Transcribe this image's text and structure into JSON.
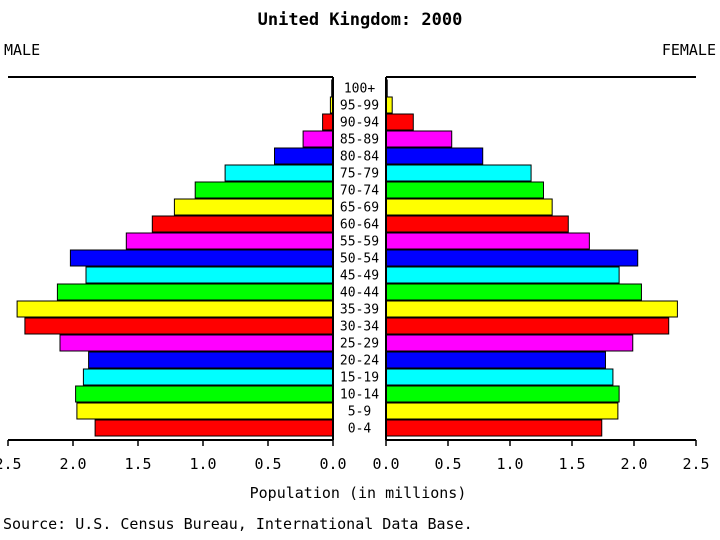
{
  "chart_data": {
    "type": "bar",
    "orientation": "horizontal",
    "layout": "population-pyramid",
    "title": "United Kingdom: 2000",
    "left_label": "MALE",
    "right_label": "FEMALE",
    "xlabel": "Population (in millions)",
    "source": "Source: U.S. Census Bureau, International Data Base.",
    "xlim": [
      0,
      2.5
    ],
    "xticks": [
      "2.5",
      "2.0",
      "1.5",
      "1.0",
      "0.5",
      "0.0"
    ],
    "xticks_right": [
      "0.0",
      "0.5",
      "1.0",
      "1.5",
      "2.0",
      "2.5"
    ],
    "categories": [
      "100+",
      "95-99",
      "90-94",
      "85-89",
      "80-84",
      "75-79",
      "70-74",
      "65-69",
      "60-64",
      "55-59",
      "50-54",
      "45-49",
      "40-44",
      "35-39",
      "30-34",
      "25-29",
      "20-24",
      "15-19",
      "10-14",
      "5-9",
      "0-4"
    ],
    "series": [
      {
        "name": "MALE",
        "values": [
          0.01,
          0.02,
          0.08,
          0.23,
          0.45,
          0.83,
          1.06,
          1.22,
          1.39,
          1.59,
          2.02,
          1.9,
          2.12,
          2.43,
          2.37,
          2.1,
          1.88,
          1.92,
          1.98,
          1.97,
          1.83
        ]
      },
      {
        "name": "FEMALE",
        "values": [
          0.01,
          0.05,
          0.22,
          0.53,
          0.78,
          1.17,
          1.27,
          1.34,
          1.47,
          1.64,
          2.03,
          1.88,
          2.06,
          2.35,
          2.28,
          1.99,
          1.77,
          1.83,
          1.88,
          1.87,
          1.74
        ]
      }
    ],
    "bar_colors": [
      "#ff0000",
      "#ffff00",
      "#00ff00",
      "#00ffff",
      "#0000ff",
      "#ff00ff"
    ],
    "grid": false,
    "background": "#ffffff"
  }
}
